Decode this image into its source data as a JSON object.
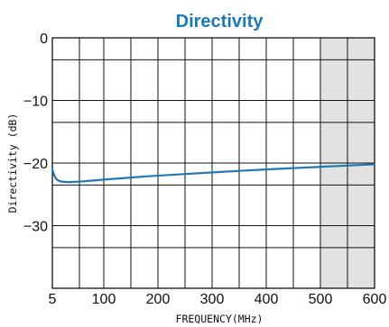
{
  "chart_data": {
    "type": "line",
    "title": "Directivity",
    "xlabel": "FREQUENCY(MHz)",
    "ylabel": "Directivity (dB)",
    "xlim": [
      5,
      600
    ],
    "ylim": [
      -40,
      0
    ],
    "x_ticks": [
      5,
      100,
      200,
      300,
      400,
      500,
      600
    ],
    "x_tick_labels": [
      "5",
      "100",
      "200",
      "300",
      "400",
      "500",
      "600"
    ],
    "x_grid": [
      5,
      55,
      100,
      150,
      200,
      250,
      300,
      350,
      400,
      450,
      500,
      550,
      600
    ],
    "y_ticks": [
      0,
      -10,
      -20,
      -30
    ],
    "y_tick_labels": [
      "0",
      "−10",
      "−20",
      "−30"
    ],
    "y_grid": [
      0,
      -3.5,
      -10,
      -13.5,
      -20,
      -23.5,
      -30,
      -33.5,
      -40
    ],
    "grid": true,
    "shaded_region": {
      "x": [
        500,
        600
      ],
      "color": "#e2e2e2"
    },
    "series": [
      {
        "color": "#1f78b4",
        "x": [
          5,
          8,
          12,
          18,
          25,
          35,
          50,
          80,
          120,
          200,
          300,
          400,
          500,
          600
        ],
        "y": [
          -21.0,
          -21.9,
          -22.6,
          -22.9,
          -23.0,
          -23.05,
          -23.0,
          -22.8,
          -22.5,
          -22.0,
          -21.5,
          -21.0,
          -20.6,
          -20.2
        ]
      }
    ]
  }
}
